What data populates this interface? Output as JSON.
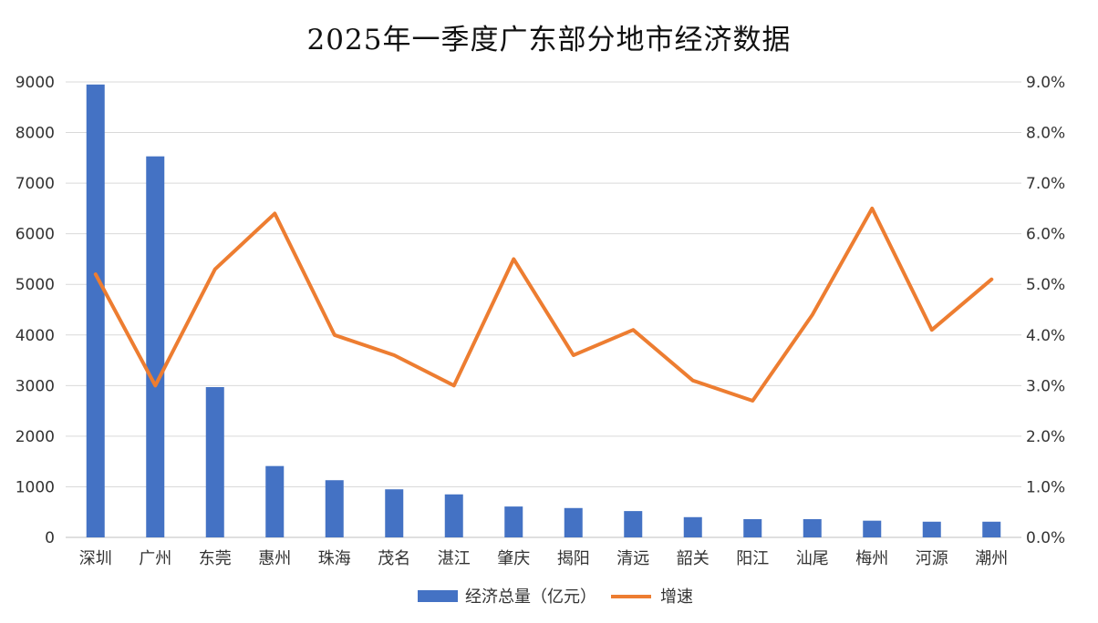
{
  "chart_data": {
    "type": "bar",
    "title": "2025年一季度广东部分地市经济数据",
    "categories": [
      "深圳",
      "广州",
      "东莞",
      "惠州",
      "珠海",
      "茂名",
      "湛江",
      "肇庆",
      "揭阳",
      "清远",
      "韶关",
      "阳江",
      "汕尾",
      "梅州",
      "河源",
      "潮州"
    ],
    "series": [
      {
        "name": "经济总量（亿元）",
        "type": "bar",
        "axis": "left",
        "color": "#4472C4",
        "values": [
          8950,
          7530,
          2970,
          1410,
          1130,
          950,
          850,
          610,
          580,
          520,
          400,
          360,
          360,
          330,
          310,
          310
        ]
      },
      {
        "name": "增速",
        "type": "line",
        "axis": "right",
        "color": "#ED7D31",
        "values": [
          5.2,
          3.0,
          5.3,
          6.4,
          4.0,
          3.6,
          3.0,
          5.5,
          3.6,
          4.1,
          3.1,
          2.7,
          4.4,
          6.5,
          4.1,
          5.1
        ]
      }
    ],
    "y_left": {
      "range": [
        0,
        9000
      ],
      "ticks": [
        "0",
        "1000",
        "2000",
        "3000",
        "4000",
        "5000",
        "6000",
        "7000",
        "8000",
        "9000"
      ]
    },
    "y_right": {
      "range": [
        0,
        9
      ],
      "ticks": [
        "0.0%",
        "1.0%",
        "2.0%",
        "3.0%",
        "4.0%",
        "5.0%",
        "6.0%",
        "7.0%",
        "8.0%",
        "9.0%"
      ]
    },
    "grid": true,
    "legend": "bottom-center",
    "colors": {
      "bar": "#4472C4",
      "line": "#ED7D31",
      "grid": "#d9d9d9"
    }
  }
}
